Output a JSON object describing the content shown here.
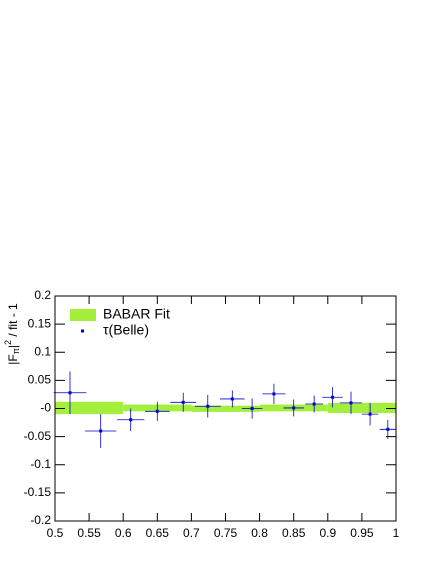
{
  "chart_data": {
    "type": "scatter",
    "ylabel": {
      "base": "|F",
      "sub": "π",
      "mid": "|",
      "sup": "2",
      "rest": " / fit - 1"
    },
    "xlim": [
      0.5,
      1
    ],
    "ylim": [
      -0.2,
      0.2
    ],
    "xticks": [
      0.5,
      0.55,
      0.6,
      0.65,
      0.7,
      0.75,
      0.8,
      0.85,
      0.9,
      0.95,
      1
    ],
    "yticks": [
      -0.2,
      -0.15,
      -0.1,
      -0.05,
      {
        "value": 0,
        "label": "-0"
      },
      0.05,
      0.1,
      0.15,
      0.2
    ],
    "legend": "top-left",
    "series": [
      {
        "name": "BABAR Fit",
        "type": "band",
        "color": "#a4ef3c",
        "bins": [
          0.5,
          0.6,
          0.7,
          0.8,
          0.9,
          1.0
        ],
        "low": [
          -0.01,
          -0.005,
          -0.006,
          -0.005,
          -0.008
        ],
        "high": [
          0.012,
          0.007,
          0.005,
          0.007,
          0.01
        ]
      },
      {
        "name": "τ(Belle)",
        "type": "points",
        "color": "#0000cc",
        "x": [
          0.522,
          0.567,
          0.611,
          0.65,
          0.688,
          0.724,
          0.76,
          0.789,
          0.821,
          0.85,
          0.88,
          0.907,
          0.934,
          0.962,
          0.988
        ],
        "values": [
          0.028,
          -0.04,
          -0.02,
          -0.005,
          0.011,
          0.004,
          0.017,
          0.0,
          0.026,
          0.001,
          0.008,
          0.02,
          0.01,
          -0.01,
          -0.037
        ],
        "xerr": [
          0.024,
          0.023,
          0.02,
          0.018,
          0.019,
          0.019,
          0.018,
          0.015,
          0.017,
          0.015,
          0.013,
          0.015,
          0.016,
          0.012,
          0.012
        ],
        "yerr": [
          0.038,
          0.03,
          0.02,
          0.017,
          0.017,
          0.02,
          0.015,
          0.018,
          0.018,
          0.015,
          0.015,
          0.018,
          0.02,
          0.02,
          0.017
        ]
      }
    ]
  }
}
